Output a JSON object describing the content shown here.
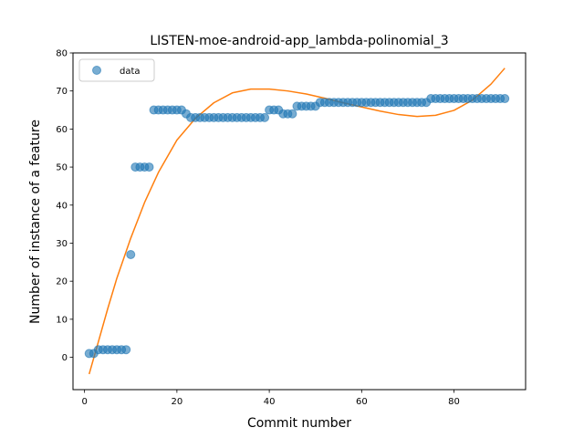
{
  "chart_data": {
    "type": "scatter",
    "title": "LISTEN-moe-android-app_lambda-polinomial_3",
    "xlabel": "Commit number",
    "ylabel": "Number of instance of a feature",
    "xlim": [
      -2.5,
      95.5
    ],
    "ylim": [
      -8.5,
      80
    ],
    "xticks": [
      0,
      20,
      40,
      60,
      80
    ],
    "yticks": [
      0,
      10,
      20,
      30,
      40,
      50,
      60,
      70,
      80
    ],
    "grid": false,
    "legend": {
      "placement": "top-left",
      "entries": [
        "data"
      ]
    },
    "colors": {
      "data": "#1f77b4",
      "fit": "#ff7f0e"
    },
    "series": [
      {
        "name": "data",
        "kind": "scatter",
        "x": [
          1,
          2,
          3,
          4,
          5,
          6,
          7,
          8,
          9,
          10,
          11,
          12,
          13,
          14,
          15,
          16,
          17,
          18,
          19,
          20,
          21,
          22,
          23,
          24,
          25,
          26,
          27,
          28,
          29,
          30,
          31,
          32,
          33,
          34,
          35,
          36,
          37,
          38,
          39,
          40,
          41,
          42,
          43,
          44,
          45,
          46,
          47,
          48,
          49,
          50,
          51,
          52,
          53,
          54,
          55,
          56,
          57,
          58,
          59,
          60,
          61,
          62,
          63,
          64,
          65,
          66,
          67,
          68,
          69,
          70,
          71,
          72,
          73,
          74,
          75,
          76,
          77,
          78,
          79,
          80,
          81,
          82,
          83,
          84,
          85,
          86,
          87,
          88,
          89,
          90,
          91
        ],
        "y": [
          1,
          1,
          2,
          2,
          2,
          2,
          2,
          2,
          2,
          27,
          50,
          50,
          50,
          50,
          65,
          65,
          65,
          65,
          65,
          65,
          65,
          64,
          63,
          63,
          63,
          63,
          63,
          63,
          63,
          63,
          63,
          63,
          63,
          63,
          63,
          63,
          63,
          63,
          63,
          65,
          65,
          65,
          64,
          64,
          64,
          66,
          66,
          66,
          66,
          66,
          67,
          67,
          67,
          67,
          67,
          67,
          67,
          67,
          67,
          67,
          67,
          67,
          67,
          67,
          67,
          67,
          67,
          67,
          67,
          67,
          67,
          67,
          67,
          67,
          68,
          68,
          68,
          68,
          68,
          68,
          68,
          68,
          68,
          68,
          68,
          68,
          68,
          68,
          68,
          68,
          68
        ]
      },
      {
        "name": "",
        "kind": "line",
        "x": [
          1,
          3,
          5,
          7,
          10,
          13,
          16,
          20,
          24,
          28,
          32,
          36,
          40,
          44,
          48,
          52,
          56,
          60,
          64,
          68,
          72,
          76,
          80,
          84,
          88,
          91
        ],
        "y": [
          -4.4,
          4.1,
          12.7,
          20.8,
          31.3,
          40.7,
          48.6,
          57.1,
          62.8,
          66.9,
          69.5,
          70.5,
          70.5,
          70.0,
          69.2,
          68.1,
          66.9,
          65.8,
          64.7,
          63.8,
          63.3,
          63.6,
          64.9,
          67.6,
          71.8,
          76.0
        ]
      }
    ]
  }
}
